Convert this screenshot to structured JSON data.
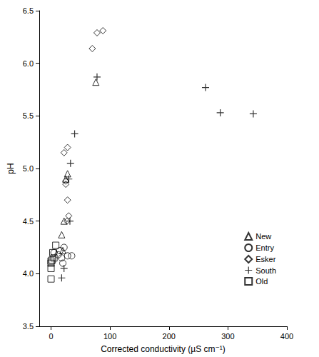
{
  "chart_data": {
    "type": "scatter",
    "x_label": "Corrected conductivity (µS cm⁻¹)",
    "y_label": "pH",
    "xlim": [
      -20,
      400
    ],
    "xticks": [
      0,
      100,
      200,
      300,
      400
    ],
    "ylim": [
      3.5,
      6.5
    ],
    "yticks": [
      {
        "value": 3.5,
        "label": "3.5"
      },
      {
        "value": 4,
        "label": "4.0"
      },
      {
        "value": 4.5,
        "label": "4.5"
      },
      {
        "value": 5,
        "label": "5.0"
      },
      {
        "value": 5.5,
        "label": "5.5"
      },
      {
        "value": 6,
        "label": "6.0"
      },
      {
        "value": 6.5,
        "label": "6.5"
      }
    ],
    "grid": false,
    "legend": "lower right",
    "series": [
      {
        "name": "New",
        "color": "#000000",
        "marker": "triangle",
        "x": [
          76,
          28,
          25,
          22,
          18,
          20
        ],
        "values": [
          5.82,
          4.95,
          4.9,
          4.5,
          4.37,
          4.22
        ]
      },
      {
        "name": "Entry",
        "color": "#000000",
        "marker": "circle",
        "x": [
          5,
          12,
          18,
          22,
          28,
          35,
          15,
          20
        ],
        "values": [
          4.2,
          4.18,
          4.15,
          4.25,
          4.17,
          4.17,
          4.22,
          4.1
        ]
      },
      {
        "name": "Esker",
        "color": "#000000",
        "marker": "diamond",
        "x": [
          70,
          78,
          88,
          22,
          28,
          25,
          30,
          28,
          25,
          27
        ],
        "values": [
          6.14,
          6.29,
          6.31,
          5.15,
          5.2,
          4.88,
          4.55,
          4.7,
          4.85,
          4.5
        ]
      },
      {
        "name": "South",
        "color": "#000000",
        "marker": "plus",
        "x": [
          78,
          40,
          33,
          30,
          32,
          22,
          18,
          262,
          287,
          343
        ],
        "values": [
          5.87,
          5.33,
          5.05,
          4.9,
          4.5,
          4.05,
          3.96,
          5.77,
          5.53,
          5.52
        ]
      },
      {
        "name": "Old",
        "color": "#000000",
        "marker": "square",
        "x": [
          0,
          0,
          0,
          2,
          5,
          8,
          3,
          0
        ],
        "values": [
          3.95,
          4.05,
          4.1,
          4.13,
          4.15,
          4.27,
          4.2,
          4.12
        ]
      }
    ]
  }
}
